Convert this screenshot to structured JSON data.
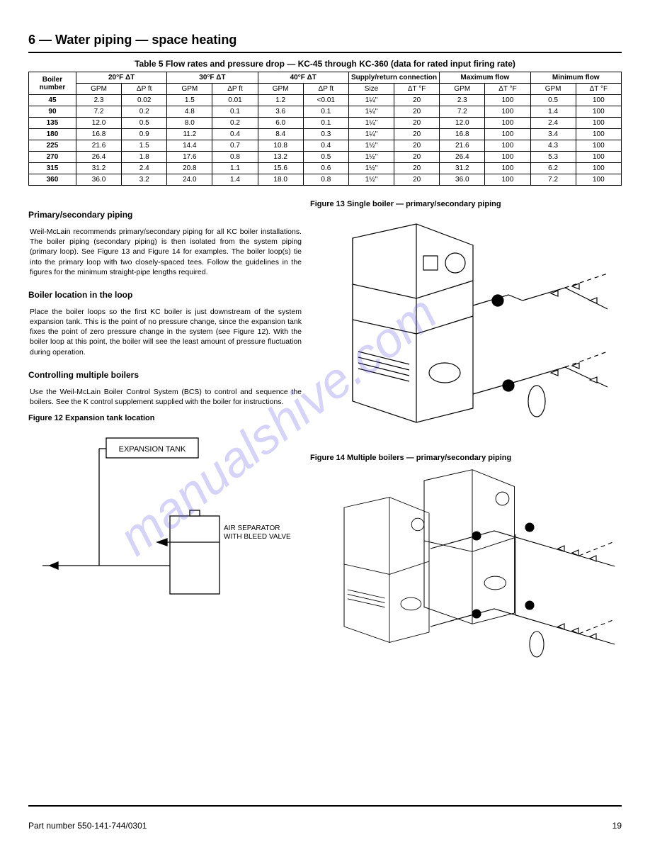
{
  "header": {
    "section_title": "6 — Water piping — space heating"
  },
  "table": {
    "caption": "Table 5   Flow rates and pressure drop — KC-45 through KC-360 (data for rated input firing rate)",
    "note_header": "Boiler number",
    "col_groups": [
      {
        "label": "20°F ΔT",
        "span": 2
      },
      {
        "label": "30°F ΔT",
        "span": 2
      },
      {
        "label": "40°F ΔT",
        "span": 2
      },
      {
        "label": "Supply/return connection",
        "span": 2
      },
      {
        "label": "Maximum flow",
        "span": 2
      },
      {
        "label": "Minimum flow",
        "span": 2
      }
    ],
    "sub_cols": [
      "GPM",
      "ΔP ft",
      "GPM",
      "ΔP ft",
      "GPM",
      "ΔP ft",
      "Size",
      "ΔT °F",
      "GPM",
      "ΔT °F",
      "GPM",
      "ΔT °F"
    ],
    "rows": [
      {
        "model": "45",
        "cells": [
          "2.3",
          "0.02",
          "1.5",
          "0.01",
          "1.2",
          "<0.01",
          "1¼\"",
          "20",
          "2.3",
          "100",
          "0.5",
          "100"
        ]
      },
      {
        "model": "90",
        "cells": [
          "7.2",
          "0.2",
          "4.8",
          "0.1",
          "3.6",
          "0.1",
          "1¼\"",
          "20",
          "7.2",
          "100",
          "1.4",
          "100"
        ]
      },
      {
        "model": "135",
        "cells": [
          "12.0",
          "0.5",
          "8.0",
          "0.2",
          "6.0",
          "0.1",
          "1¼\"",
          "20",
          "12.0",
          "100",
          "2.4",
          "100"
        ]
      },
      {
        "model": "180",
        "cells": [
          "16.8",
          "0.9",
          "11.2",
          "0.4",
          "8.4",
          "0.3",
          "1¼\"",
          "20",
          "16.8",
          "100",
          "3.4",
          "100"
        ]
      },
      {
        "model": "225",
        "cells": [
          "21.6",
          "1.5",
          "14.4",
          "0.7",
          "10.8",
          "0.4",
          "1½\"",
          "20",
          "21.6",
          "100",
          "4.3",
          "100"
        ]
      },
      {
        "model": "270",
        "cells": [
          "26.4",
          "1.8",
          "17.6",
          "0.8",
          "13.2",
          "0.5",
          "1½\"",
          "20",
          "26.4",
          "100",
          "5.3",
          "100"
        ]
      },
      {
        "model": "315",
        "cells": [
          "31.2",
          "2.4",
          "20.8",
          "1.1",
          "15.6",
          "0.6",
          "1½\"",
          "20",
          "31.2",
          "100",
          "6.2",
          "100"
        ]
      },
      {
        "model": "360",
        "cells": [
          "36.0",
          "3.2",
          "24.0",
          "1.4",
          "18.0",
          "0.8",
          "1½\"",
          "20",
          "36.0",
          "100",
          "7.2",
          "100"
        ]
      }
    ]
  },
  "text": {
    "subhead_primary": "Primary/secondary piping",
    "para_primary": "Weil-McLain recommends primary/secondary piping for all KC boiler installations. The boiler piping (secondary piping) is then isolated from the system piping (primary loop). See Figure 13 and Figure 14 for examples. The boiler loop(s) tie into the primary loop with two closely-spaced tees. Follow the guidelines in the figures for the minimum straight-pipe lengths required.",
    "subhead_location": "Boiler location in the loop",
    "para_location": "Place the boiler loops so the first KC boiler is just downstream of the system expansion tank. This is the point of no pressure change, since the expansion tank fixes the point of zero pressure change in the system (see Figure 12). With the boiler loop at this point, the boiler will see the least amount of pressure fluctuation during operation.",
    "subhead_multi": "Controlling multiple boilers",
    "para_multi": "Use the Weil-McLain Boiler Control System (BCS) to control and sequence the boilers. See the K control supplement supplied with the boiler for instructions.",
    "fig12_caption": "Figure 12   Expansion tank location",
    "fig13_caption": "Figure 13   Single boiler — primary/secondary piping",
    "fig14_caption": "Figure 14   Multiple boilers — primary/secondary piping",
    "exp_tank_label": "EXPANSION TANK",
    "air_sep_label_1": "AIR SEPARATOR",
    "air_sep_label_2": "WITH BLEED VALVE"
  },
  "footer": {
    "doc_code": "Part number 550-141-744/0301",
    "page_number": "19"
  },
  "style": {
    "stroke": "#000000",
    "watermark_color": "rgba(90,80,230,0.25)"
  }
}
